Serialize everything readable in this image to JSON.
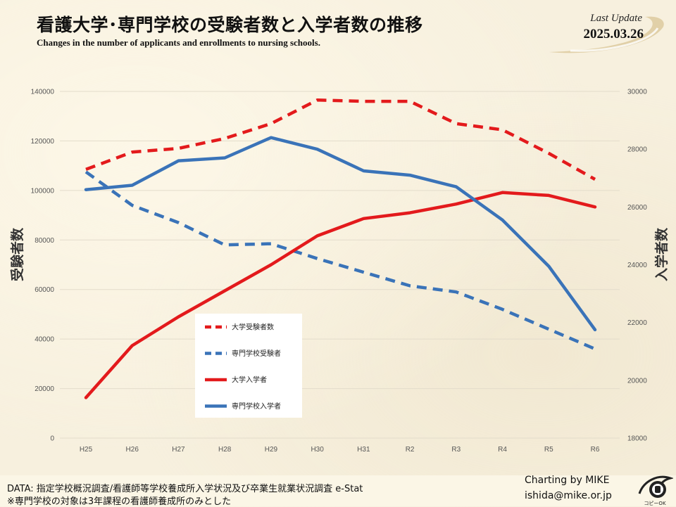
{
  "header": {
    "title": "看護大学･専門学校の受験者数と入学者数の推移",
    "subtitle": "Changes in the number of applicants and enrollments to nursing schools.",
    "last_update_label": "Last Update",
    "last_update_date": "2025.03.26"
  },
  "footer": {
    "data_note": "DATA: 指定学校概況調査/看護師等学校養成所入学状況及び卒業生就業状況調査 e-Stat",
    "scope_note": "※専門学校の対象は3年課程の看護師養成所のみとした",
    "credit": "Charting by MIKE",
    "email": "ishida@mike.or.jp",
    "logo_caption": "コピーOK"
  },
  "colors": {
    "red": "#e31a1c",
    "blue": "#3a73b8"
  },
  "chart_data": {
    "type": "line",
    "x": [
      "H25",
      "H26",
      "H27",
      "H28",
      "H29",
      "H30",
      "H31",
      "R2",
      "R3",
      "R4",
      "R5",
      "R6"
    ],
    "ylabel_left": "受験者数",
    "ylabel_right": "入学者数",
    "ylim_left": [
      0,
      140000
    ],
    "ylim_right": [
      18000,
      30000
    ],
    "yticks_left": [
      0,
      20000,
      40000,
      60000,
      80000,
      100000,
      120000,
      140000
    ],
    "yticks_right": [
      18000,
      20000,
      22000,
      24000,
      26000,
      28000,
      30000
    ],
    "legend_position": "center-left",
    "grid": true,
    "series": [
      {
        "name": "大学受験者数",
        "axis": "left",
        "color": "#e31a1c",
        "dashed": true,
        "values": [
          108500,
          115500,
          117000,
          121000,
          127000,
          136500,
          136000,
          136000,
          127000,
          124500,
          115000,
          104500
        ]
      },
      {
        "name": "専門学校受験者",
        "axis": "left",
        "color": "#3a73b8",
        "dashed": true,
        "values": [
          107500,
          94000,
          87000,
          78000,
          78500,
          72500,
          67000,
          61500,
          59000,
          52000,
          44000,
          36000
        ]
      },
      {
        "name": "大学入学者",
        "axis": "right",
        "color": "#e31a1c",
        "dashed": false,
        "values": [
          19400,
          21200,
          22200,
          23100,
          24000,
          25000,
          25600,
          25800,
          26100,
          26500,
          26400,
          26000
        ]
      },
      {
        "name": "専門学校入学者",
        "axis": "right",
        "color": "#3a73b8",
        "dashed": false,
        "values": [
          26600,
          26750,
          27600,
          27700,
          28400,
          28000,
          27250,
          27100,
          26700,
          25550,
          23950,
          21750
        ]
      }
    ]
  }
}
